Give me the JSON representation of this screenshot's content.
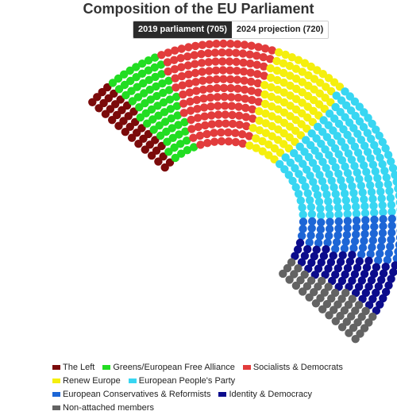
{
  "title": "Composition of the EU Parliament",
  "tabs": [
    {
      "label": "2019 parliament (705)",
      "active": true
    },
    {
      "label": "2024 projection (720)",
      "active": false
    }
  ],
  "chart_data": {
    "type": "parliament",
    "total_seats": 705,
    "series": [
      {
        "name": "The Left",
        "seats": 39,
        "color": "#7b0a0a"
      },
      {
        "name": "Greens/European Free Alliance",
        "seats": 71,
        "color": "#22dd22"
      },
      {
        "name": "Socialists & Democrats",
        "seats": 145,
        "color": "#e23c3c"
      },
      {
        "name": "Renew Europe",
        "seats": 101,
        "color": "#f5ef0e"
      },
      {
        "name": "European People's Party",
        "seats": 176,
        "color": "#38d6f2"
      },
      {
        "name": "European Conservatives & Reformists",
        "seats": 62,
        "color": "#1d66d6"
      },
      {
        "name": "Identity & Democracy",
        "seats": 62,
        "color": "#0c0c8c"
      },
      {
        "name": "Non-attached members",
        "seats": 49,
        "color": "#636363"
      }
    ],
    "legend_position": "bottom"
  }
}
